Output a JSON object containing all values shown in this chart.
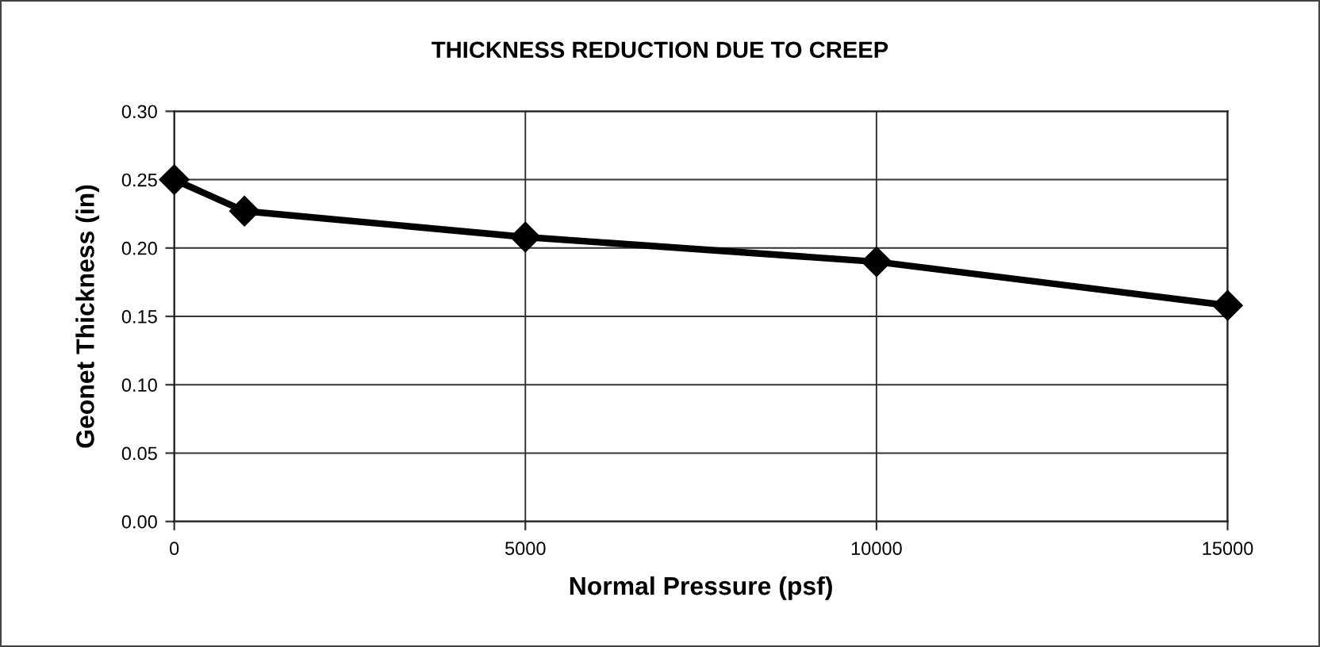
{
  "chart_data": {
    "type": "line",
    "title": "THICKNESS REDUCTION DUE TO CREEP",
    "xlabel": "Normal Pressure (psf)",
    "ylabel": "Geonet Thickness (in)",
    "x": [
      0,
      1000,
      5000,
      10000,
      15000
    ],
    "series": [
      {
        "color": "#000000",
        "values": [
          0.25,
          0.227,
          0.208,
          0.19,
          0.158
        ]
      }
    ],
    "xlim": [
      0,
      15000
    ],
    "xticks": [
      0,
      5000,
      10000,
      15000
    ],
    "ylim": [
      0,
      0.3
    ],
    "yticks": [
      {
        "value": 0,
        "label": "0.00"
      },
      {
        "value": 0.05,
        "label": "0.05"
      },
      {
        "value": 0.1,
        "label": "0.10"
      },
      {
        "value": 0.15,
        "label": "0.15"
      },
      {
        "value": 0.2,
        "label": "0.20"
      },
      {
        "value": 0.25,
        "label": "0.25"
      },
      {
        "value": 0.3,
        "label": "0.30"
      }
    ],
    "grid": true,
    "marker": "diamond",
    "line_style": "solid"
  }
}
